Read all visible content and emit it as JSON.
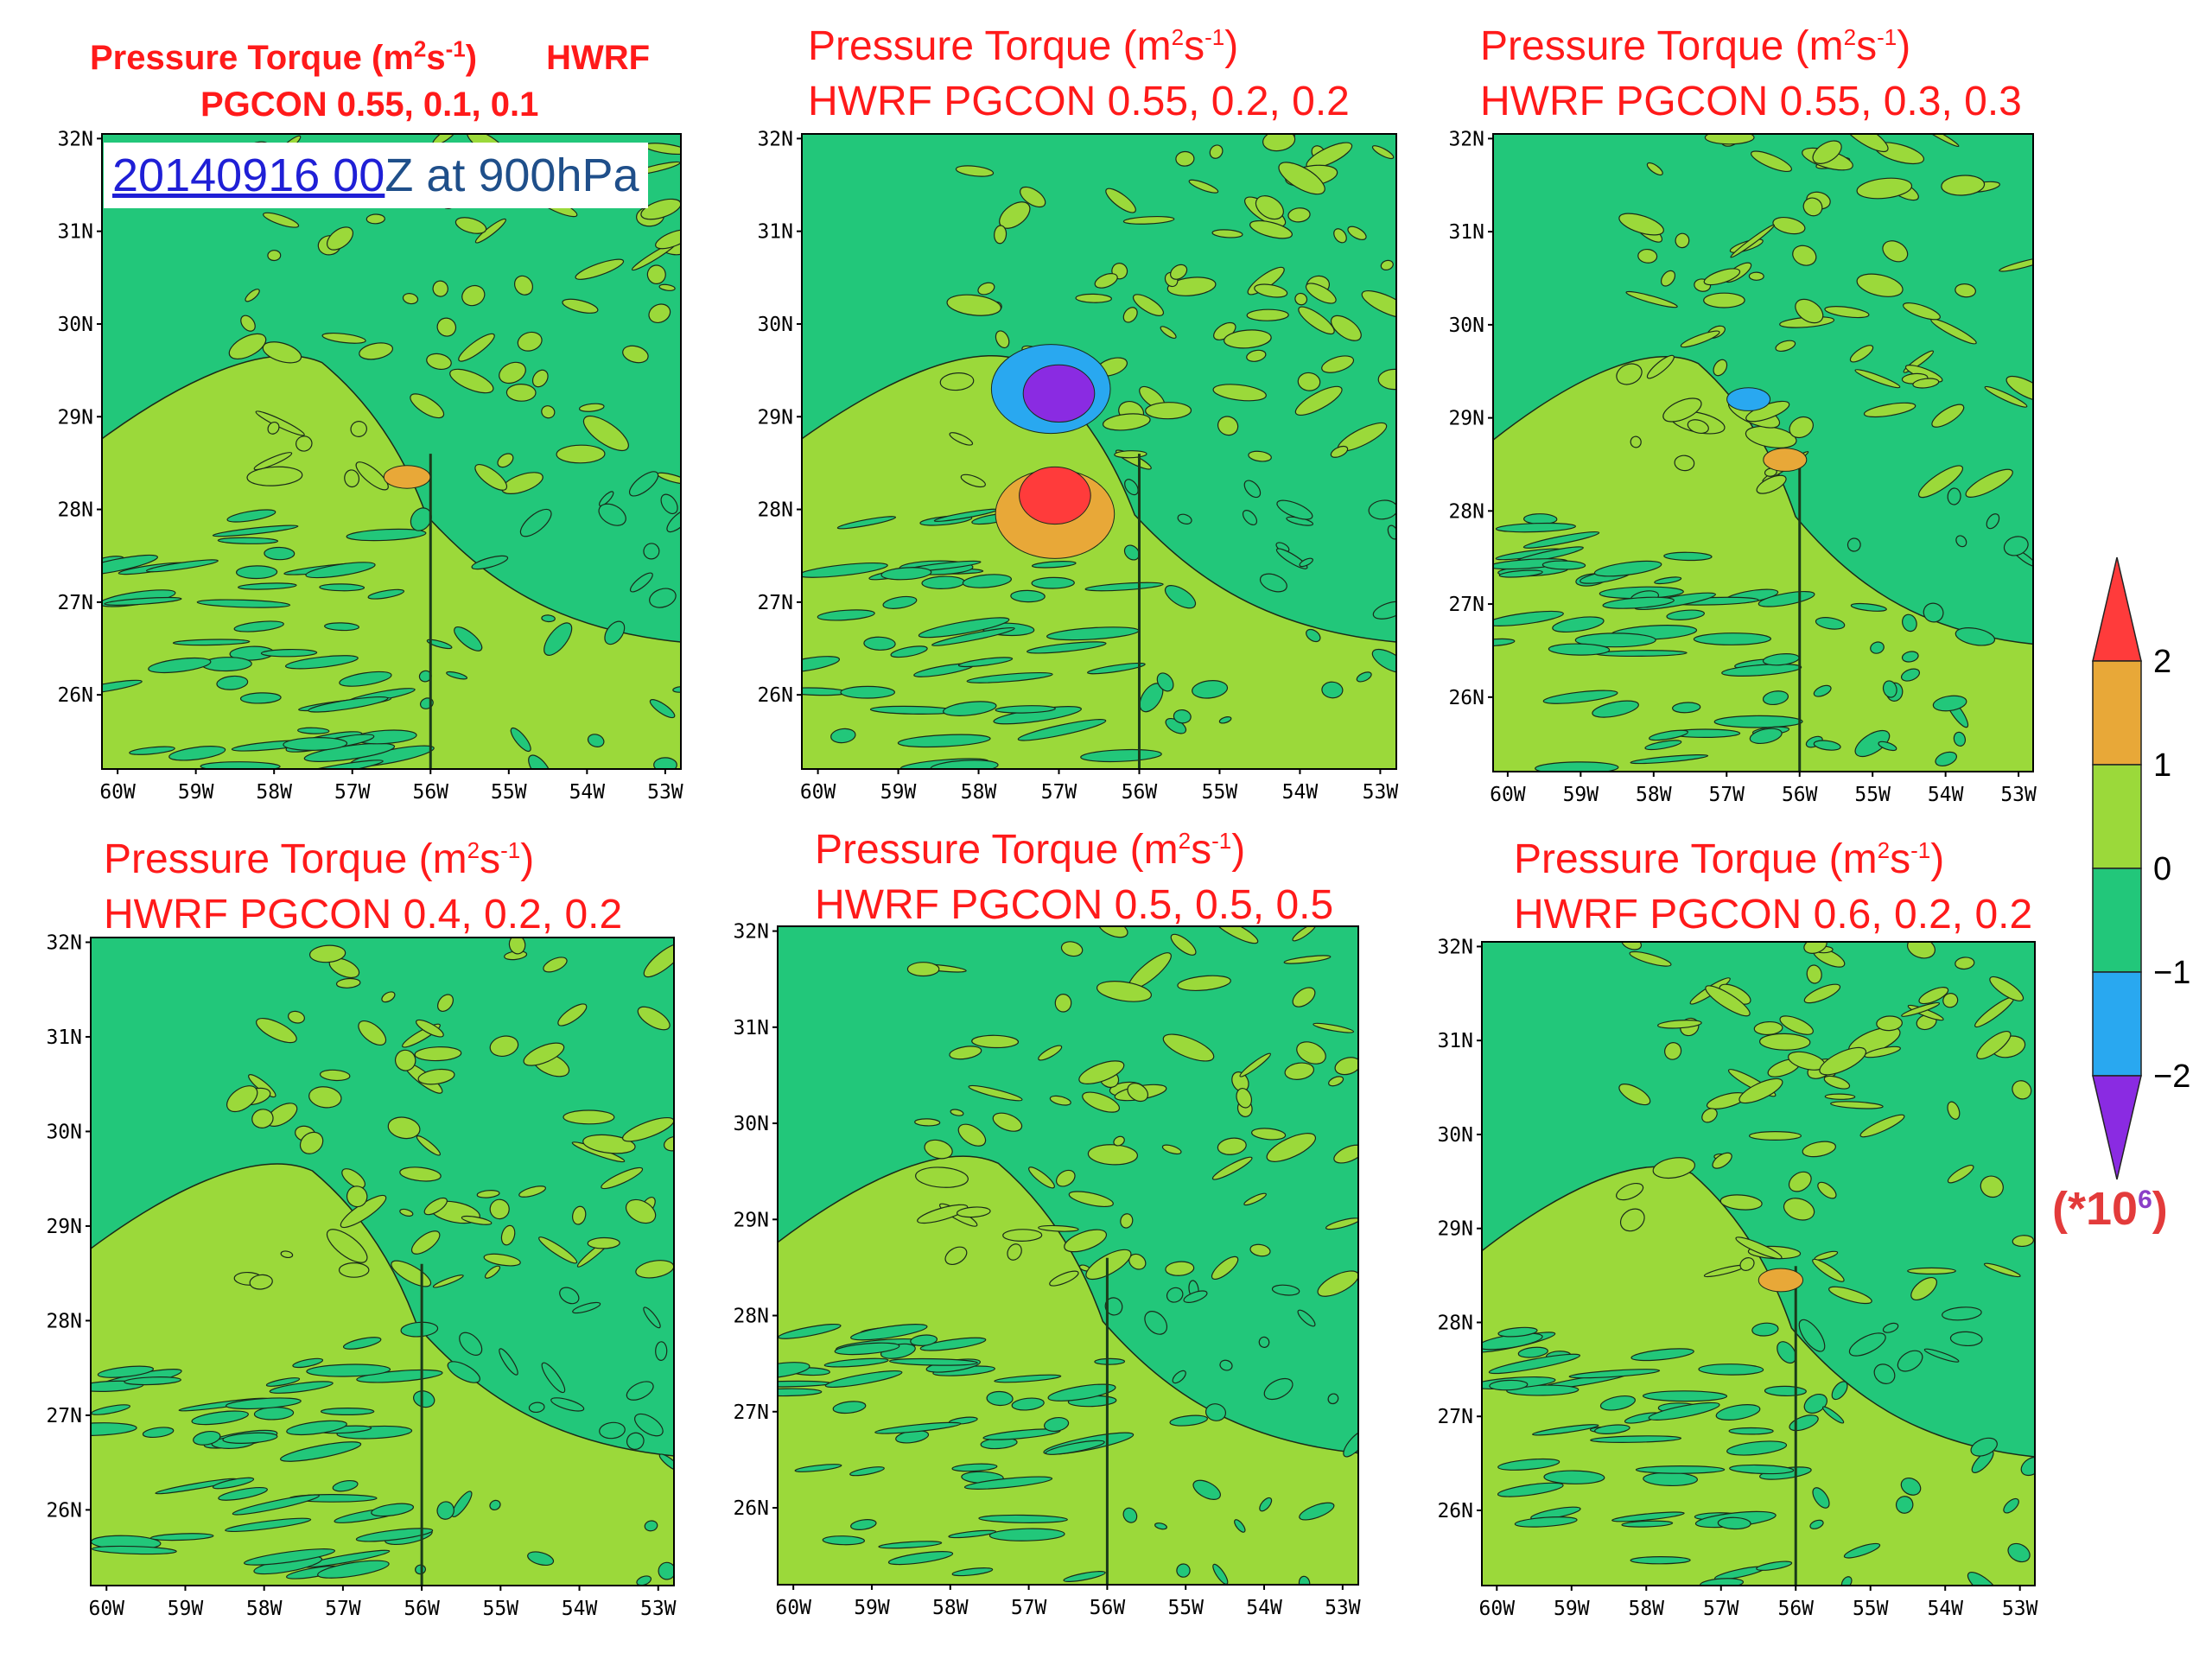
{
  "chart_data": {
    "type": "heatmap",
    "levels": [
      -2,
      -1,
      0,
      1,
      2
    ],
    "colorbar": {
      "bins": [
        {
          "range": "below -2",
          "color": "#8a2be2"
        },
        {
          "range": "-2 to -1",
          "color": "#29a8f0"
        },
        {
          "range": "-1 to 0",
          "color": "#22c77a"
        },
        {
          "range": "0 to 1",
          "color": "#9bd93a"
        },
        {
          "range": "1 to 2",
          "color": "#e8a838"
        },
        {
          "range": "above 2",
          "color": "#ff3b3b"
        }
      ],
      "tick_labels": [
        "2",
        "1",
        "0",
        "−1",
        "−2"
      ],
      "scale_prefix": "(*10",
      "scale_exp": "6",
      "scale_suffix": ")"
    },
    "x_ticks": [
      "60W",
      "59W",
      "58W",
      "57W",
      "56W",
      "55W",
      "54W",
      "53W"
    ],
    "y_ticks": [
      "32N",
      "31N",
      "30N",
      "29N",
      "28N",
      "27N",
      "26N"
    ],
    "xlim": [
      -60.2,
      -52.8
    ],
    "ylim": [
      25.2,
      32.05
    ],
    "date_label": {
      "link": "20140916 00",
      "rest": "Z at 900hPa"
    },
    "panels": [
      {
        "line1": "Pressure Torque (m",
        "line1_sup1": "2",
        "line1_mid": "s",
        "line1_sup2": "-1",
        "line1_end": ")",
        "line1_tail": "HWRF",
        "line2": "PGCON 0.55, 0.1, 0.1",
        "style": "bold",
        "features": [
          {
            "lon": -56.3,
            "lat": 28.35,
            "value": 1.5
          }
        ]
      },
      {
        "line1": "Pressure Torque (m",
        "line1_sup1": "2",
        "line1_mid": "s",
        "line1_sup2": "-1",
        "line1_end": ")",
        "line1_tail": "",
        "line2": "HWRF PGCON  0.55, 0.2, 0.2",
        "style": "normal",
        "features": [
          {
            "lon": -57.1,
            "lat": 29.3,
            "value": -1.5
          },
          {
            "lon": -57.0,
            "lat": 29.25,
            "value": -2.5
          },
          {
            "lon": -57.05,
            "lat": 27.95,
            "value": 1.5
          },
          {
            "lon": -57.05,
            "lat": 28.15,
            "value": 2.5
          }
        ]
      },
      {
        "line1": "Pressure Torque (m",
        "line1_sup1": "2",
        "line1_mid": "s",
        "line1_sup2": "-1",
        "line1_end": ")",
        "line1_tail": "",
        "line2": "HWRF PGCON  0.55, 0.3, 0.3",
        "style": "normal",
        "features": [
          {
            "lon": -56.2,
            "lat": 28.55,
            "value": 1.5
          },
          {
            "lon": -56.7,
            "lat": 29.2,
            "value": -1.5
          }
        ]
      },
      {
        "line1": "Pressure Torque (m",
        "line1_sup1": "2",
        "line1_mid": "s",
        "line1_sup2": "-1",
        "line1_end": ")",
        "line1_tail": "",
        "line2": "HWRF PGCON  0.4, 0.2, 0.2",
        "style": "normal",
        "features": []
      },
      {
        "line1": "Pressure Torque (m",
        "line1_sup1": "2",
        "line1_mid": "s",
        "line1_sup2": "-1",
        "line1_end": ")",
        "line1_tail": "",
        "line2": "HWRF PGCON  0.5, 0.5, 0.5",
        "style": "normal",
        "features": []
      },
      {
        "line1": "Pressure Torque (m",
        "line1_sup1": "2",
        "line1_mid": "s",
        "line1_sup2": "-1",
        "line1_end": ")",
        "line1_tail": "",
        "line2": "HWRF PGCON  0.6, 0.2, 0.2",
        "style": "normal",
        "features": [
          {
            "lon": -56.2,
            "lat": 28.45,
            "value": 1.5
          }
        ]
      }
    ]
  }
}
